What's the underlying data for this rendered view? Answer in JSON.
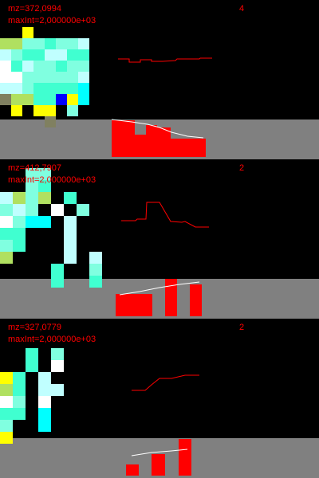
{
  "colors": {
    "background": "#000000",
    "label": "#ff0000",
    "strip_background": "#808080",
    "bar": "#ff0000",
    "trend_line": "#ffffff",
    "profile_line": "#ff0000"
  },
  "chart_data": [
    {
      "type": "heatmap",
      "mz_label": "mz=372,0994",
      "maxint_label": "maxInt=2,000000e+03",
      "count_label": "4",
      "heatmap": {
        "cell": [
          14,
          14
        ],
        "origin": [
          0,
          34
        ],
        "colors": [
          "#00ffff",
          "#40ffd0",
          "#80ffe0",
          "#c0ffff",
          "#ffffff",
          "#ffff00",
          "#b0e060",
          "#808060",
          "#0000ff"
        ],
        "rows": [
          "..5.....",
          "66221223",
          "32113311",
          "41322122",
          "44222223",
          "33211110",
          "76611850",
          ".5.55.2.",
          "....7..."
        ]
      },
      "profile": [
        [
          148,
          74
        ],
        [
          162,
          74
        ],
        [
          162,
          78
        ],
        [
          176,
          78
        ],
        [
          176,
          75
        ],
        [
          190,
          75
        ],
        [
          190,
          77
        ],
        [
          204,
          77
        ],
        [
          220,
          76
        ],
        [
          222,
          74
        ],
        [
          250,
          74
        ],
        [
          251,
          73
        ],
        [
          266,
          73
        ]
      ],
      "bars": [
        {
          "x": 140,
          "w": 29,
          "h": 46
        },
        {
          "x": 169,
          "w": 14,
          "h": 28
        },
        {
          "x": 183,
          "w": 14,
          "h": 40
        },
        {
          "x": 197,
          "w": 17,
          "h": 37
        },
        {
          "x": 214,
          "w": 44,
          "h": 23
        }
      ],
      "trend": [
        [
          140,
          150
        ],
        [
          165,
          153
        ],
        [
          185,
          156
        ],
        [
          200,
          160
        ],
        [
          215,
          166
        ],
        [
          235,
          171
        ],
        [
          255,
          173
        ]
      ]
    },
    {
      "type": "heatmap",
      "mz_label": "mz=412,7907",
      "maxint_label": "maxInt=2,000000e+03",
      "count_label": "2",
      "heatmap": {
        "cell": [
          16,
          15
        ],
        "origin": [
          0,
          211
        ],
        "colors": [
          "#00ffff",
          "#40ffd0",
          "#80ffe0",
          "#c0ffff",
          "#ffffff",
          "#ffff00",
          "#b0e060",
          "#808060",
          "#0000ff"
        ],
        "rows": [
          "..22....",
          "..21....",
          "3626.1..",
          "232.4.2.",
          "4200.3..",
          "11...3..",
          "21...3..",
          "6....3.3",
          "....1..2",
          "....1..1"
        ]
      },
      "profile": [
        [
          152,
          277
        ],
        [
          170,
          277
        ],
        [
          172,
          275
        ],
        [
          183,
          275
        ],
        [
          184,
          254
        ],
        [
          200,
          254
        ],
        [
          214,
          278
        ],
        [
          228,
          279
        ],
        [
          232,
          278
        ],
        [
          245,
          285
        ],
        [
          262,
          285
        ]
      ],
      "bars": [
        {
          "x": 145,
          "w": 46,
          "h": 28
        },
        {
          "x": 207,
          "w": 15,
          "h": 47
        },
        {
          "x": 238,
          "w": 15,
          "h": 40
        }
      ],
      "trend": [
        [
          150,
          370
        ],
        [
          175,
          366
        ],
        [
          200,
          361
        ],
        [
          225,
          357
        ],
        [
          250,
          354
        ]
      ]
    },
    {
      "type": "heatmap",
      "mz_label": "mz=327,0779",
      "maxint_label": "maxInt=2,000000e+03",
      "count_label": "2",
      "heatmap": {
        "cell": [
          16,
          15
        ],
        "origin": [
          0,
          437
        ],
        "colors": [
          "#00ffff",
          "#40ffd0",
          "#80ffe0",
          "#c0ffff",
          "#ffffff",
          "#ffff00",
          "#b0e060",
          "#808060",
          "#0000ff"
        ],
        "rows": [
          "..1.2...",
          "..1.4...",
          "51.3....",
          "61.33...",
          "42.4....",
          "11.0....",
          "2..0....",
          "5......."
        ]
      },
      "profile": [
        [
          165,
          490
        ],
        [
          182,
          490
        ],
        [
          190,
          483
        ],
        [
          200,
          475
        ],
        [
          215,
          475
        ],
        [
          232,
          471
        ],
        [
          250,
          471
        ]
      ],
      "bars": [
        {
          "x": 158,
          "w": 16,
          "h": 14
        },
        {
          "x": 190,
          "w": 17,
          "h": 27
        },
        {
          "x": 224,
          "w": 16,
          "h": 46
        }
      ],
      "trend": [
        [
          165,
          572
        ],
        [
          190,
          568
        ],
        [
          215,
          566
        ],
        [
          235,
          564
        ]
      ]
    }
  ]
}
